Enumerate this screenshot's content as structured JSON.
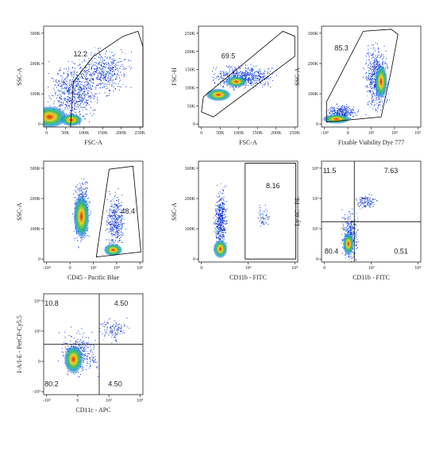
{
  "panels": [
    {
      "x_label": "FSC-A",
      "y_label": "SSC-A",
      "x_ticks": [
        "0",
        "50K",
        "100K",
        "150K",
        "200K",
        "250K"
      ],
      "y_ticks": [
        "0",
        "100K",
        "200K",
        "300K"
      ],
      "gates": [
        "12.2"
      ]
    },
    {
      "x_label": "FSC-A",
      "y_label": "FSC-H",
      "x_ticks": [
        "0",
        "50K",
        "100K",
        "150K",
        "200K",
        "250K"
      ],
      "y_ticks": [
        "0",
        "50K",
        "100K",
        "150K",
        "200K",
        "250K"
      ],
      "gates": [
        "69.5"
      ]
    },
    {
      "x_label": "Fixable Viability Dye 777",
      "y_label": "SSC-A",
      "x_ticks": [
        "-10³",
        "0",
        "10³",
        "10⁴",
        "10⁵"
      ],
      "y_ticks": [
        "0",
        "100K",
        "200K",
        "300K"
      ],
      "gates": [
        "85.3"
      ]
    },
    {
      "x_label": "CD45 - Pacific Blue",
      "y_label": "SSC-A",
      "x_ticks": [
        "-10³",
        "0",
        "10³",
        "10⁴",
        "10⁵"
      ],
      "y_ticks": [
        "0",
        "100K",
        "200K",
        "300K"
      ],
      "gates": [
        "48.4"
      ]
    },
    {
      "x_label": "CD11b - FITC",
      "y_label": "SSC-A",
      "x_ticks": [
        "0",
        "10³",
        "10⁴"
      ],
      "y_ticks": [
        "0",
        "100K",
        "200K",
        "300K"
      ],
      "gates": [
        "8.16"
      ]
    },
    {
      "x_label": "CD11b - FITC",
      "y_label": "Ly-6C - PE",
      "x_ticks": [
        "0",
        "10³",
        "10⁴"
      ],
      "y_ticks": [
        "0",
        "10²",
        "10³",
        "10⁴"
      ],
      "gates": [
        "11.5",
        "7.63",
        "80.4",
        "0.51"
      ]
    },
    {
      "x_label": "CD11c - APC",
      "y_label": "I-A/I-E - PerCP-Cy5.5",
      "x_ticks": [
        "-10³",
        "0",
        "10³",
        "10⁴"
      ],
      "y_ticks": [
        "-10³",
        "0",
        "10³",
        "10⁴"
      ],
      "gates": [
        "10.8",
        "4.50",
        "80.2",
        "4.50"
      ]
    }
  ]
}
